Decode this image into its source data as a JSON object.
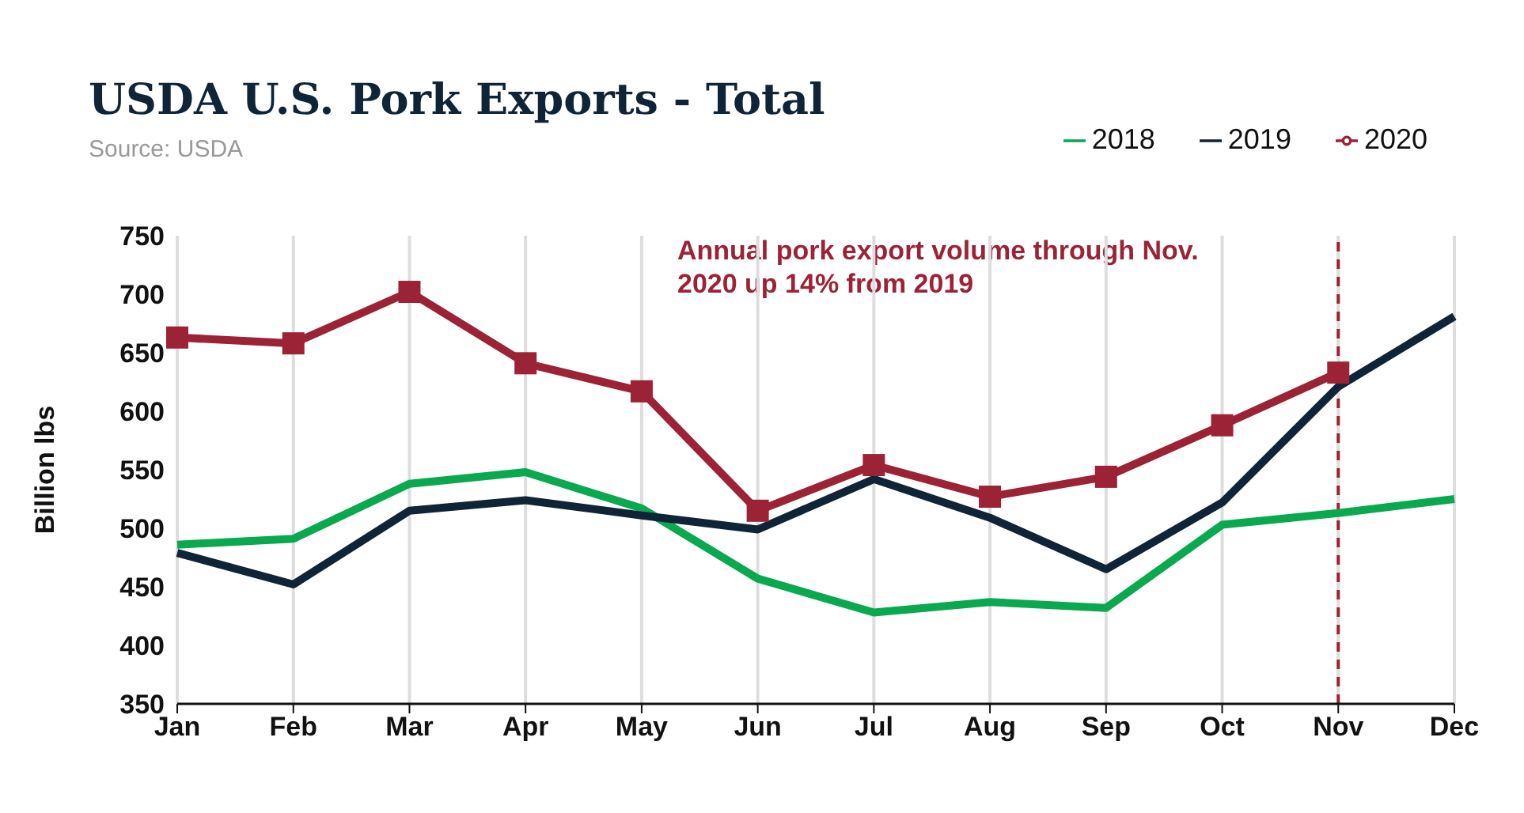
{
  "chart_data": {
    "type": "line",
    "title": "USDA U.S. Pork Exports - Total",
    "ylabel": "Billion  lbs",
    "annotations": [
      "Source: USDA",
      "Annual pork export volume through Nov. 2020 up 14% from 2019"
    ],
    "categories": [
      "Jan",
      "Feb",
      "Mar",
      "Apr",
      "May",
      "Jun",
      "Jul",
      "Aug",
      "Sep",
      "Oct",
      "Nov",
      "Dec"
    ],
    "series": [
      {
        "name": "2018",
        "color": "#0aa84f",
        "marker": "none",
        "values": [
          486,
          491,
          538,
          548,
          517,
          457,
          428,
          437,
          432,
          503,
          513,
          525
        ]
      },
      {
        "name": "2019",
        "color": "#0f2437",
        "marker": "none",
        "values": [
          479,
          452,
          515,
          524,
          511,
          499,
          542,
          509,
          465,
          522,
          621,
          681
        ]
      },
      {
        "name": "2020",
        "color": "#9b2335",
        "marker": "square",
        "values": [
          663,
          658,
          702,
          641,
          617,
          515,
          554,
          527,
          544,
          588,
          633,
          null
        ]
      }
    ],
    "ylim": [
      350,
      750
    ],
    "yticks": [
      350,
      400,
      450,
      500,
      550,
      600,
      650,
      700,
      750
    ],
    "grid": "x",
    "legend": "top right",
    "line_style": "solid",
    "ref_lines": [
      {
        "axis": "x",
        "value": "Nov",
        "color": "#9b2335",
        "line_style": "dashed"
      }
    ]
  }
}
